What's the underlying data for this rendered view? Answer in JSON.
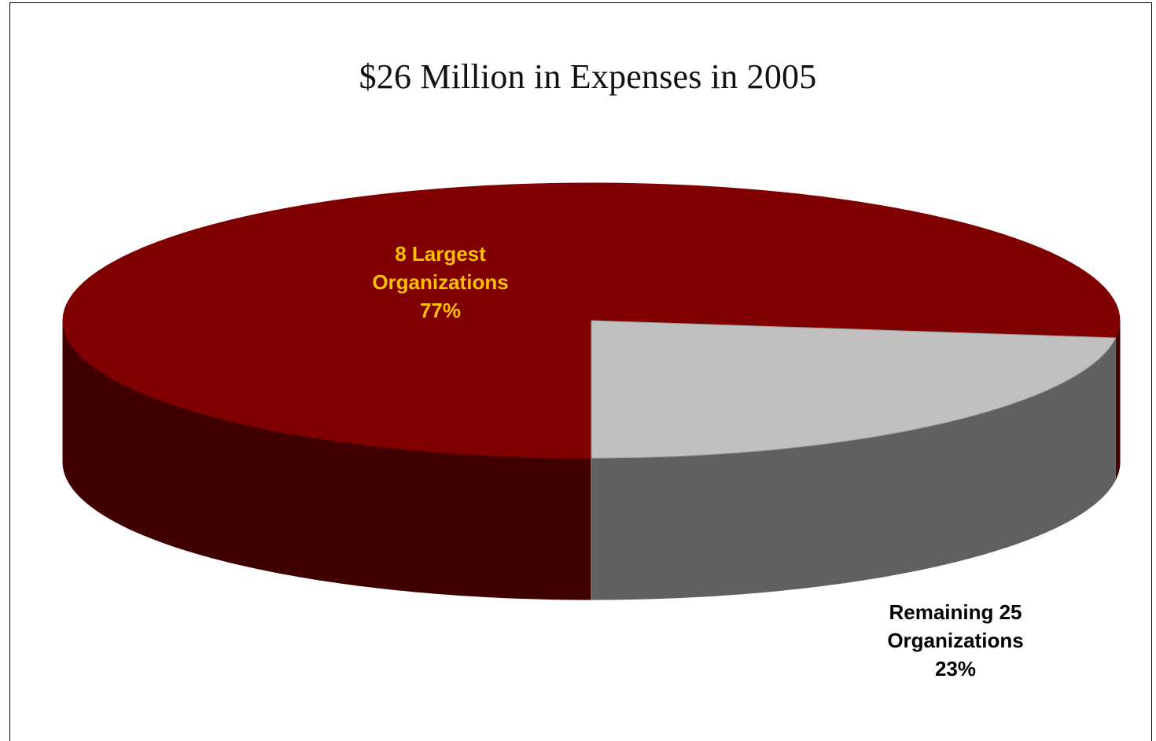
{
  "chart_data": {
    "type": "pie",
    "style": "3d",
    "title": "$26 Million in Expenses in 2005",
    "slices": [
      {
        "label_lines": [
          "8 Largest",
          "Organizations",
          "77%"
        ],
        "value": 77,
        "top_color": "#800000",
        "side_color": "#400000",
        "label_color": "#FFC000"
      },
      {
        "label_lines": [
          "Remaining 25",
          "Organizations",
          "23%"
        ],
        "value": 23,
        "top_color": "#C0C0C0",
        "side_color": "#606060",
        "label_color": "#000000"
      }
    ]
  }
}
